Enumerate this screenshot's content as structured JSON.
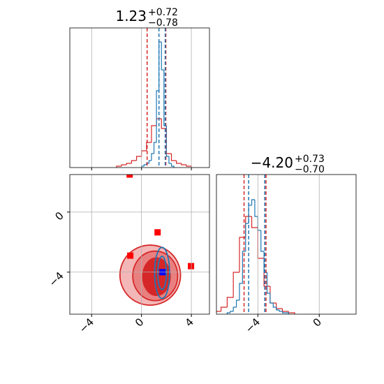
{
  "chart_data": [
    {
      "type": "histogram",
      "title": "1.23",
      "title_upper": "+0.72",
      "title_lower": "−0.78",
      "xlim": [
        -5.75,
        5.45
      ],
      "xticks": [
        {
          "value": -4,
          "label": "−4"
        },
        0,
        4
      ],
      "ylim": [
        0,
        1
      ],
      "grid": true,
      "series": [
        {
          "color": "#d62728",
          "bins": [
            -2.0,
            -1.6,
            -1.2,
            -0.8,
            -0.4,
            0.0,
            0.4,
            0.8,
            1.2,
            1.6,
            2.0,
            2.4,
            2.8,
            3.2,
            3.6,
            4.0
          ],
          "values": [
            0.01,
            0.02,
            0.03,
            0.05,
            0.08,
            0.12,
            0.18,
            0.3,
            0.35,
            0.28,
            0.1,
            0.05,
            0.03,
            0.02,
            0.01
          ]
        },
        {
          "color": "#1f77b4",
          "bins": [
            0.0,
            0.2,
            0.4,
            0.6,
            0.8,
            1.0,
            1.2,
            1.4,
            1.6,
            1.8,
            2.0,
            2.2,
            2.4,
            2.6
          ],
          "values": [
            0.01,
            0.02,
            0.03,
            0.05,
            0.1,
            0.18,
            0.55,
            0.9,
            0.7,
            0.3,
            0.08,
            0.03,
            0.01
          ]
        }
      ],
      "lines": [
        {
          "color": "#d62728",
          "x": 0.45
        },
        {
          "color": "#d62728",
          "x": 1.95
        },
        {
          "color": "#1f77b4",
          "x": 1.4
        },
        {
          "color": "#1f77b4",
          "x": 1.9
        }
      ]
    },
    {
      "type": "contour",
      "xlim": [
        -5.75,
        5.45
      ],
      "xticks": [
        {
          "value": -4,
          "label": "−4"
        },
        0,
        4
      ],
      "ylim": [
        -6.8,
        2.5
      ],
      "yticks": [
        0,
        {
          "value": -4,
          "label": "−4"
        }
      ],
      "grid": true,
      "contours": [
        {
          "color": "#d62728",
          "fill": "#f4b7b7",
          "center": [
            0.7,
            -4.2
          ],
          "radii": [
            2.43,
            2.0
          ]
        },
        {
          "color": "#d62728",
          "fill": "#e98080",
          "center": [
            1.1,
            -4.25
          ],
          "radii": [
            1.8,
            1.65
          ]
        },
        {
          "color": "#d62728",
          "fill": "#d62728",
          "center": [
            1.2,
            -4.3
          ],
          "radii": [
            1.1,
            1.25
          ]
        },
        {
          "color": "#1f77b4",
          "fill": "none",
          "center": [
            1.65,
            -4.05
          ],
          "radii": [
            0.6,
            1.7
          ]
        },
        {
          "color": "#1f77b4",
          "fill": "none",
          "center": [
            1.65,
            -4.05
          ],
          "radii": [
            0.35,
            1.1
          ]
        }
      ],
      "points": [
        {
          "color": "#ff0000",
          "x": -0.95,
          "y": 2.5
        },
        {
          "color": "#ff0000",
          "x": 1.29,
          "y": -1.35
        },
        {
          "color": "#ff0000",
          "x": -0.9,
          "y": -2.9
        },
        {
          "color": "#ff0000",
          "x": 3.97,
          "y": -3.6
        },
        {
          "color": "#0000ff",
          "x": 1.68,
          "y": -4.0
        }
      ]
    },
    {
      "type": "histogram",
      "title": "−4.20",
      "title_upper": "+0.73",
      "title_lower": "−0.70",
      "xlim": [
        -6.7,
        2.4
      ],
      "xticks": [
        {
          "value": -4,
          "label": "−4"
        },
        0
      ],
      "ylim": [
        0,
        1
      ],
      "grid": true,
      "series": [
        {
          "color": "#d62728",
          "bins": [
            -6.8,
            -6.4,
            -6.0,
            -5.6,
            -5.2,
            -4.8,
            -4.4,
            -4.0,
            -3.6,
            -3.2,
            -2.8,
            -2.4,
            -2.0,
            -1.6
          ],
          "values": [
            0.02,
            0.05,
            0.12,
            0.3,
            0.55,
            0.7,
            0.62,
            0.4,
            0.2,
            0.08,
            0.04,
            0.02,
            0.01
          ]
        },
        {
          "color": "#1f77b4",
          "bins": [
            -6.0,
            -5.8,
            -5.6,
            -5.4,
            -5.2,
            -5.0,
            -4.8,
            -4.6,
            -4.4,
            -4.2,
            -4.0,
            -3.8,
            -3.6,
            -3.4,
            -3.2,
            -3.0,
            -2.8,
            -2.6,
            -2.4,
            -2.2,
            -2.0
          ],
          "values": [
            0.01,
            0.02,
            0.05,
            0.1,
            0.22,
            0.45,
            0.65,
            0.78,
            0.82,
            0.7,
            0.6,
            0.45,
            0.3,
            0.15,
            0.08,
            0.05,
            0.03,
            0.02,
            0.01,
            0.01
          ]
        }
      ],
      "lines": [
        {
          "color": "#d62728",
          "x": -4.9
        },
        {
          "color": "#d62728",
          "x": -3.47
        },
        {
          "color": "#1f77b4",
          "x": -4.6
        },
        {
          "color": "#1f77b4",
          "x": -3.55
        }
      ]
    }
  ]
}
